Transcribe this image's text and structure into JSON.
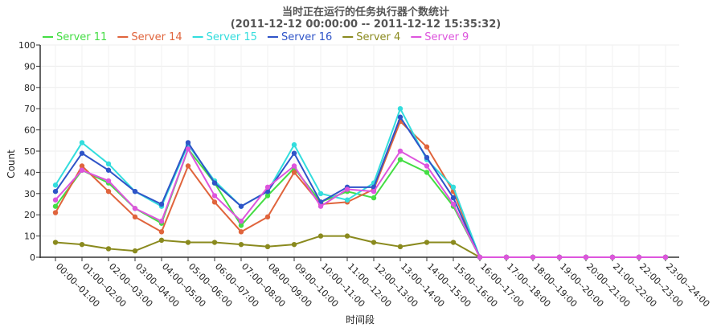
{
  "chart_data": {
    "type": "line",
    "title": "当时正在运行的任务执行器个数统计",
    "subtitle": "(2011-12-12 00:00:00 -- 2011-12-12 15:35:32)",
    "xlabel": "时间段",
    "ylabel": "Count",
    "ylim": [
      0,
      100
    ],
    "yticks": [
      0,
      10,
      20,
      30,
      40,
      50,
      60,
      70,
      80,
      90,
      100
    ],
    "grid": true,
    "legend_position": "top-left",
    "categories": [
      "00:00--01:00",
      "01:00--02:00",
      "02:00--03:00",
      "03:00--04:00",
      "04:00--05:00",
      "05:00--06:00",
      "06:00--07:00",
      "07:00--08:00",
      "08:00--09:00",
      "09:00--10:00",
      "10:00--11:00",
      "11:00--12:00",
      "12:00--13:00",
      "13:00--14:00",
      "14:00--15:00",
      "15:00--16:00",
      "16:00--17:00",
      "17:00--18:00",
      "18:00--19:00",
      "19:00--20:00",
      "20:00--21:00",
      "21:00--22:00",
      "22:00--23:00",
      "23:00--24:00"
    ],
    "series": [
      {
        "name": "Server 11",
        "color": "#44dd44",
        "values": [
          24,
          41,
          35,
          23,
          16,
          51,
          35,
          15,
          29,
          42,
          26,
          31,
          28,
          46,
          40,
          24,
          0,
          0,
          0,
          0,
          0,
          0,
          0,
          0
        ]
      },
      {
        "name": "Server 14",
        "color": "#e0643c",
        "values": [
          21,
          43,
          31,
          19,
          12,
          43,
          26,
          12,
          19,
          40,
          25,
          26,
          32,
          64,
          52,
          31,
          0,
          0,
          0,
          0,
          0,
          0,
          0,
          0
        ]
      },
      {
        "name": "Server 15",
        "color": "#33dddd",
        "values": [
          34,
          54,
          44,
          31,
          24,
          53,
          36,
          24,
          31,
          53,
          30,
          27,
          35,
          70,
          46,
          33,
          0,
          0,
          0,
          0,
          0,
          0,
          0,
          0
        ]
      },
      {
        "name": "Server 16",
        "color": "#2f54c8",
        "values": [
          31,
          49,
          41,
          31,
          25,
          54,
          35,
          24,
          31,
          49,
          26,
          33,
          33,
          66,
          47,
          28,
          0,
          0,
          0,
          0,
          0,
          0,
          0,
          0
        ]
      },
      {
        "name": "Server 4",
        "color": "#8a8a1e",
        "values": [
          7,
          6,
          4,
          3,
          8,
          7,
          7,
          6,
          5,
          6,
          10,
          10,
          7,
          5,
          7,
          7,
          0,
          0,
          0,
          0,
          0,
          0,
          0,
          0
        ]
      },
      {
        "name": "Server 9",
        "color": "#dd55dd",
        "values": [
          27,
          41,
          36,
          23,
          17,
          51,
          29,
          17,
          33,
          43,
          24,
          32,
          31,
          50,
          43,
          25,
          0,
          0,
          0,
          0,
          0,
          0,
          0,
          0
        ]
      }
    ]
  }
}
